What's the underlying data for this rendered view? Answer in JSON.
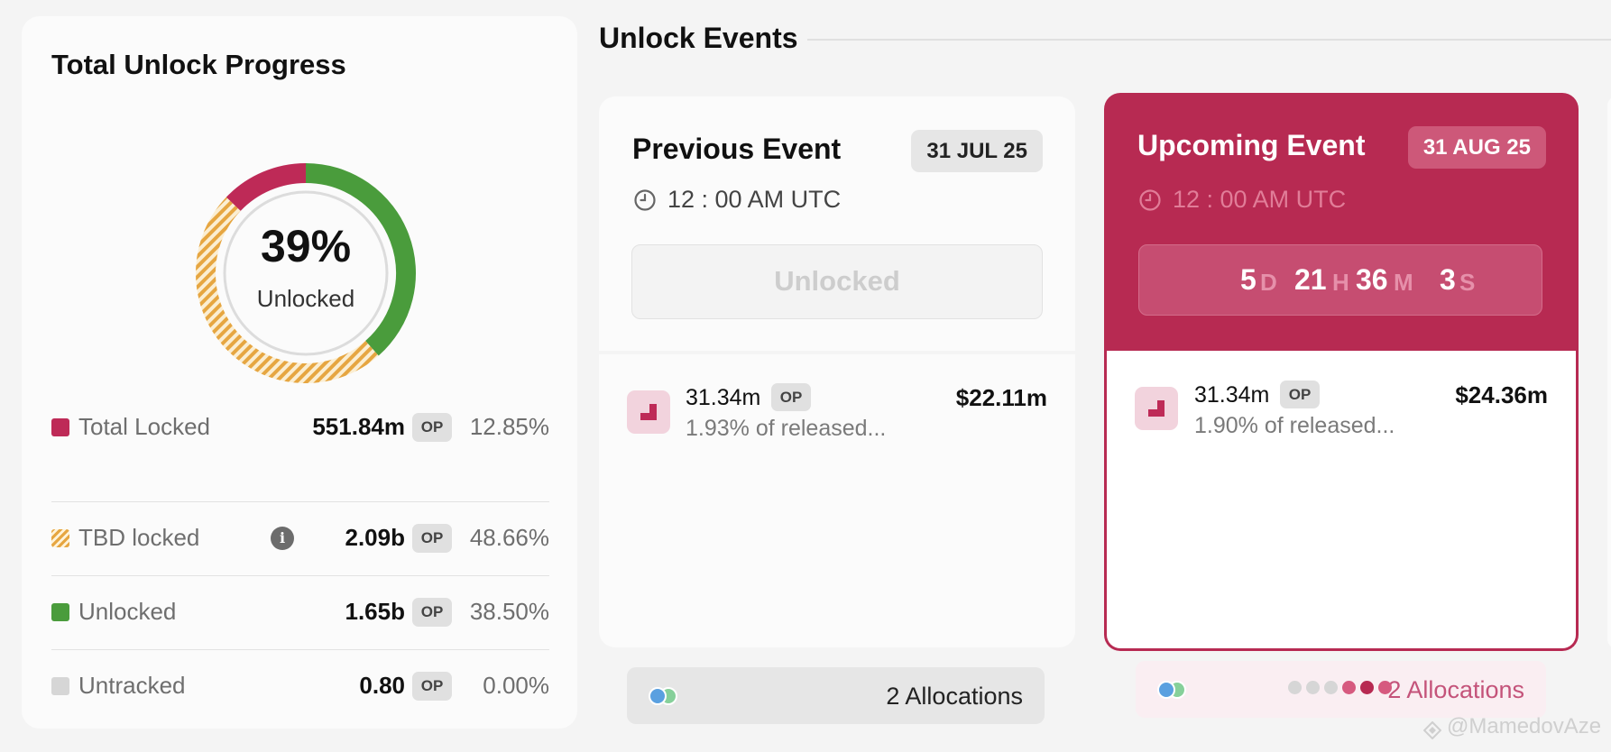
{
  "progress": {
    "title": "Total Unlock Progress",
    "unlocked_percent": "39%",
    "unlocked_label": "Unlocked",
    "donut_fractions": {
      "unlocked": 0.385,
      "tbd_locked": 0.4866,
      "total_locked": 0.1285
    },
    "rows": [
      {
        "name": "Total Locked",
        "amount": "551.84m",
        "token": "OP",
        "pct": "12.85%",
        "color": "#be2a57"
      },
      {
        "name": "TBD locked",
        "amount": "2.09b",
        "token": "OP",
        "pct": "48.66%",
        "color": "#e6a641",
        "info_icon": "info-icon"
      },
      {
        "name": "Unlocked",
        "amount": "1.65b",
        "token": "OP",
        "pct": "38.50%",
        "color": "#4a9c3c"
      },
      {
        "name": "Untracked",
        "amount": "0.80",
        "token": "OP",
        "pct": "0.00%",
        "color": "#d6d6d6"
      }
    ]
  },
  "events": {
    "title": "Unlock Events",
    "previous": {
      "title": "Previous Event",
      "date": "31 JUL 25",
      "time": "12 : 00 AM UTC",
      "status": "Unlocked",
      "amount": "31.34m",
      "token": "OP",
      "usd": "$22.11m",
      "description": "1.93% of released...",
      "allocations": "2 Allocations"
    },
    "upcoming": {
      "title": "Upcoming Event",
      "date": "31 AUG 25",
      "time": "12 : 00 AM UTC",
      "countdown": {
        "days": "5",
        "d": "D",
        "hours": "21",
        "h": "H",
        "minutes": "36",
        "m": "M",
        "seconds": "3",
        "s": "S"
      },
      "amount": "31.34m",
      "token": "OP",
      "usd": "$24.36m",
      "description": "1.90% of released...",
      "allocations": "2 Allocations"
    },
    "pager_active_index": 3
  },
  "watermark": "@MamedovAze",
  "colors": {
    "accent": "#b72a52",
    "unlocked": "#4a9c3c",
    "tbd": "#e6a641"
  }
}
